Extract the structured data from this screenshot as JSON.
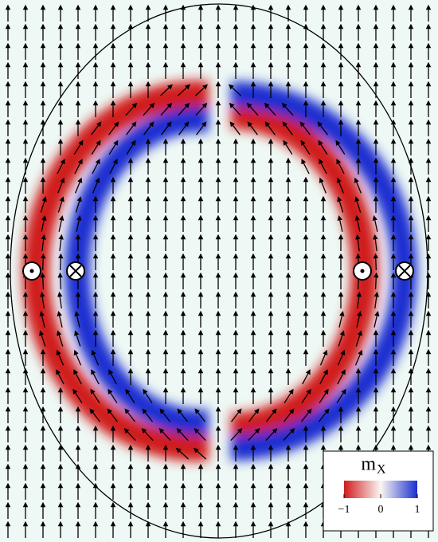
{
  "chart_data": {
    "type": "vector-field",
    "colorbar": {
      "label": "m",
      "label_sub": "X",
      "clim": [
        -1,
        1
      ],
      "ticks": [
        {
          "value": -1,
          "label": "−1"
        },
        0,
        1
      ],
      "colors": [
        "#d01c1c",
        "#fbf7f2",
        "#1a2fd0"
      ]
    }
  }
}
